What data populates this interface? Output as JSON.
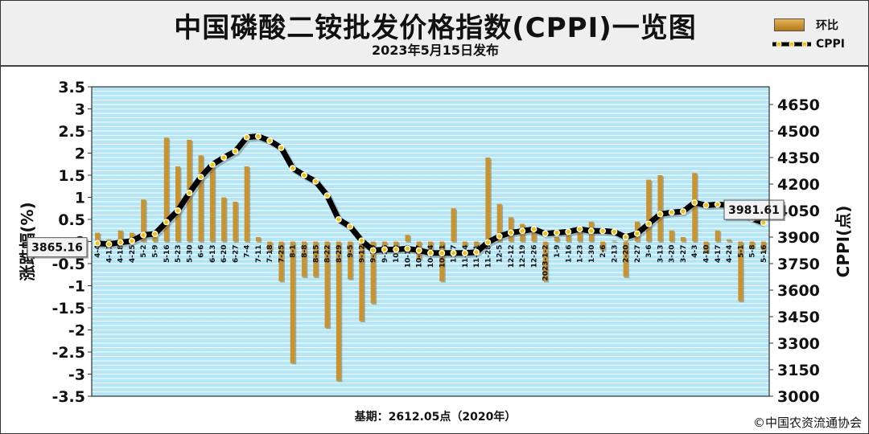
{
  "header": {
    "title": "中国磷酸二铵批发价格指数(CPPI)一览图",
    "subtitle": "2023年5月15日发布"
  },
  "legend": {
    "bar_label": "环比",
    "line_label": "CPPI"
  },
  "footer": {
    "base_note": "基期：2612.05点（2020年）",
    "copyright": "©中国农资流通协会"
  },
  "colors": {
    "plot_bg": "#b3e6f7",
    "grid": "#ffffff",
    "bar": "#c9942e",
    "line": "#000000",
    "dot": "#f5c200"
  },
  "chart_data": {
    "type": "bar+line",
    "title": "中国磷酸二铵批发价格指数(CPPI)一览图",
    "ylabel_left": "涨跌幅(%)",
    "ylabel_right": "CPPI(点)",
    "ylim_left": [
      -3.5,
      3.5
    ],
    "ylim_right": [
      3000,
      4750
    ],
    "left_ticks": [
      "3.5",
      "3",
      "2.5",
      "2",
      "1.5",
      "1",
      "0.5",
      "0",
      "-0.5",
      "-1",
      "-1.5",
      "-2",
      "-2.5",
      "-3",
      "-3.5"
    ],
    "right_ticks": [
      "4650",
      "4500",
      "4350",
      "4200",
      "4050",
      "3900",
      "3750",
      "3600",
      "3450",
      "3300",
      "3150",
      "3000"
    ],
    "grid": true,
    "legend_position": "top-right",
    "categories": [
      "4-4",
      "4-11",
      "4-18",
      "4-25",
      "5-2",
      "5-9",
      "5-16",
      "5-23",
      "5-30",
      "6-6",
      "6-13",
      "6-20",
      "6-27",
      "7-4",
      "7-11",
      "7-18",
      "7-25",
      "8-1",
      "8-8",
      "8-15",
      "8-22",
      "8-29",
      "9-5",
      "9-12",
      "9-19",
      "9-26",
      "10-3",
      "10-10",
      "10-17",
      "10-24",
      "10-31",
      "11-7",
      "11-14",
      "11-21",
      "11-28",
      "12-5",
      "12-12",
      "12-19",
      "12-26",
      "2023-1-2",
      "1-9",
      "1-16",
      "1-23",
      "1-30",
      "2-6",
      "2-13",
      "2-20",
      "2-27",
      "3-6",
      "3-13",
      "3-20",
      "3-27",
      "4-3",
      "4-10",
      "4-17",
      "4-24",
      "5-1",
      "5-8",
      "5-16"
    ],
    "series": [
      {
        "name": "环比",
        "kind": "bar",
        "values": [
          0.2,
          0.05,
          0.25,
          0.2,
          0.95,
          0.1,
          2.35,
          1.7,
          2.3,
          1.95,
          1.7,
          1.0,
          0.9,
          1.7,
          0.1,
          -0.2,
          -0.9,
          -2.75,
          -0.8,
          -0.8,
          -1.95,
          -3.15,
          -0.85,
          -1.8,
          -1.4,
          -0.2,
          -0.1,
          0.15,
          -0.4,
          -0.3,
          -0.9,
          0.75,
          -0.1,
          -0.1,
          1.9,
          0.85,
          0.55,
          0.4,
          0.3,
          -0.9,
          0.1,
          0.15,
          0.3,
          0.45,
          -0.2,
          0.02,
          -0.8,
          0.45,
          1.4,
          1.5,
          0.25,
          0.1,
          1.55,
          -0.25,
          0.25,
          0.05,
          -1.35,
          -0.15,
          -0.2
        ]
      },
      {
        "name": "CPPI",
        "kind": "line",
        "values": [
          3865.16,
          3860,
          3870,
          3878,
          3912,
          3918,
          3985,
          4050,
          4150,
          4240,
          4310,
          4350,
          4385,
          4465,
          4470,
          4445,
          4405,
          4290,
          4250,
          4215,
          4135,
          4000,
          3960,
          3880,
          3825,
          3830,
          3830,
          3835,
          3825,
          3810,
          3810,
          3810,
          3810,
          3815,
          3870,
          3905,
          3925,
          3935,
          3945,
          3920,
          3925,
          3930,
          3945,
          3935,
          3935,
          3930,
          3900,
          3920,
          3975,
          4030,
          4040,
          4045,
          4095,
          4080,
          4085,
          4080,
          4040,
          4005,
          3981.61
        ]
      }
    ],
    "annotations": [
      {
        "text": "3865.16",
        "at_category": "4-4"
      },
      {
        "text": "3981.61",
        "at_category": "5-16"
      }
    ]
  }
}
